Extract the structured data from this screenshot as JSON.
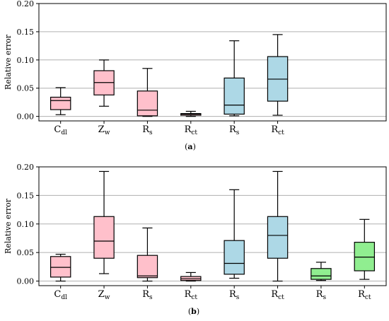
{
  "chart_data": [
    {
      "type": "box",
      "panel_label": "a",
      "ylabel": "Relative error",
      "ylim": [
        -0.008,
        0.2
      ],
      "yticks": [
        "0.00",
        "0.05",
        "0.10",
        "0.15",
        "0.20"
      ],
      "ytick_values": [
        0,
        0.05,
        0.1,
        0.15,
        0.2
      ],
      "grid": "horizontal",
      "slots": 8,
      "categories": [
        {
          "main": "C",
          "sub": "dl"
        },
        {
          "main": "Z",
          "sub": "w"
        },
        {
          "main": "R",
          "sub": "s"
        },
        {
          "main": "R",
          "sub": "ct"
        },
        {
          "main": "R",
          "sub": "s"
        },
        {
          "main": "R",
          "sub": "ct"
        }
      ],
      "boxes": [
        {
          "color": "#ffc0cb",
          "min": 0.003,
          "q1": 0.012,
          "median": 0.028,
          "q3": 0.034,
          "max": 0.051
        },
        {
          "color": "#ffc0cb",
          "min": 0.018,
          "q1": 0.038,
          "median": 0.06,
          "q3": 0.081,
          "max": 0.1
        },
        {
          "color": "#ffc0cb",
          "min": 0.0,
          "q1": 0.001,
          "median": 0.011,
          "q3": 0.045,
          "max": 0.085
        },
        {
          "color": "#ffc0cb",
          "min": 0.0,
          "q1": 0.002,
          "median": 0.004,
          "q3": 0.005,
          "max": 0.009
        },
        {
          "color": "#add8e6",
          "min": 0.001,
          "q1": 0.004,
          "median": 0.02,
          "q3": 0.068,
          "max": 0.134
        },
        {
          "color": "#add8e6",
          "min": 0.002,
          "q1": 0.027,
          "median": 0.066,
          "q3": 0.106,
          "max": 0.145
        }
      ]
    },
    {
      "type": "box",
      "panel_label": "b",
      "ylabel": "Relative error",
      "ylim": [
        -0.008,
        0.2
      ],
      "yticks": [
        "0.00",
        "0.05",
        "0.10",
        "0.15",
        "0.20"
      ],
      "ytick_values": [
        0,
        0.05,
        0.1,
        0.15,
        0.2
      ],
      "grid": "horizontal",
      "slots": 8,
      "categories": [
        {
          "main": "C",
          "sub": "dl"
        },
        {
          "main": "Z",
          "sub": "w"
        },
        {
          "main": "R",
          "sub": "s"
        },
        {
          "main": "R",
          "sub": "ct"
        },
        {
          "main": "R",
          "sub": "s"
        },
        {
          "main": "R",
          "sub": "ct"
        },
        {
          "main": "R",
          "sub": "s"
        },
        {
          "main": "R",
          "sub": "ct"
        }
      ],
      "boxes": [
        {
          "color": "#ffc0cb",
          "min": 0.0,
          "q1": 0.007,
          "median": 0.024,
          "q3": 0.043,
          "max": 0.047
        },
        {
          "color": "#ffc0cb",
          "min": 0.013,
          "q1": 0.04,
          "median": 0.07,
          "q3": 0.113,
          "max": 0.192
        },
        {
          "color": "#ffc0cb",
          "min": 0.0,
          "q1": 0.006,
          "median": 0.009,
          "q3": 0.045,
          "max": 0.093
        },
        {
          "color": "#ffc0cb",
          "min": 0.0,
          "q1": 0.001,
          "median": 0.004,
          "q3": 0.008,
          "max": 0.015
        },
        {
          "color": "#add8e6",
          "min": 0.005,
          "q1": 0.012,
          "median": 0.031,
          "q3": 0.071,
          "max": 0.16
        },
        {
          "color": "#add8e6",
          "min": 0.0,
          "q1": 0.04,
          "median": 0.08,
          "q3": 0.113,
          "max": 0.192
        },
        {
          "color": "#90ee90",
          "min": 0.001,
          "q1": 0.003,
          "median": 0.009,
          "q3": 0.022,
          "max": 0.033
        },
        {
          "color": "#90ee90",
          "min": 0.003,
          "q1": 0.018,
          "median": 0.042,
          "q3": 0.068,
          "max": 0.108
        }
      ]
    }
  ]
}
